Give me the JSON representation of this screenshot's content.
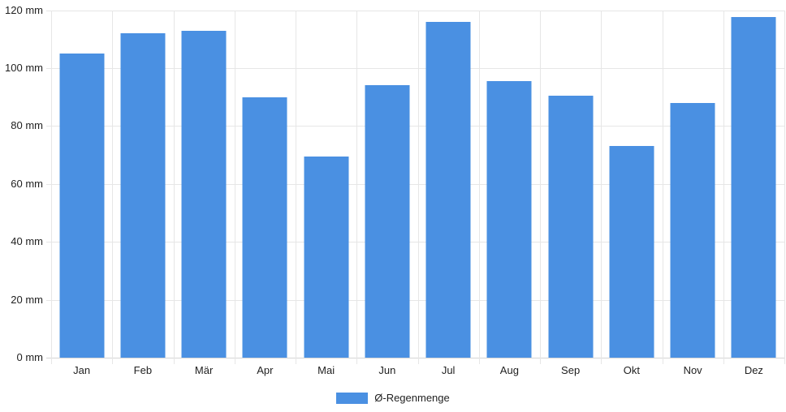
{
  "chart_data": {
    "type": "bar",
    "title": "",
    "categories": [
      "Jan",
      "Feb",
      "Mär",
      "Apr",
      "Mai",
      "Jun",
      "Jul",
      "Aug",
      "Sep",
      "Okt",
      "Nov",
      "Dez"
    ],
    "series": [
      {
        "name": "Ø-Regenmenge",
        "values": [
          105,
          112,
          113,
          90,
          69.5,
          94,
          116,
          95.5,
          90.5,
          73,
          88,
          117.5
        ]
      }
    ],
    "unit": "mm",
    "xlabel": "",
    "ylabel": "",
    "ylim": [
      0,
      120
    ],
    "yticks": {
      "values": [
        0,
        20,
        40,
        60,
        80,
        100,
        120
      ],
      "labels": [
        "0 mm",
        "20 mm",
        "40 mm",
        "60 mm",
        "80 mm",
        "100 mm",
        "120 mm"
      ]
    },
    "grid": true,
    "legend_position": "bottom",
    "colors": {
      "bar": "#4a90e2",
      "gridline": "#e6e6e6",
      "baseline": "#d6d6d6",
      "text": "#1f1f1f",
      "background": "#ffffff"
    }
  }
}
